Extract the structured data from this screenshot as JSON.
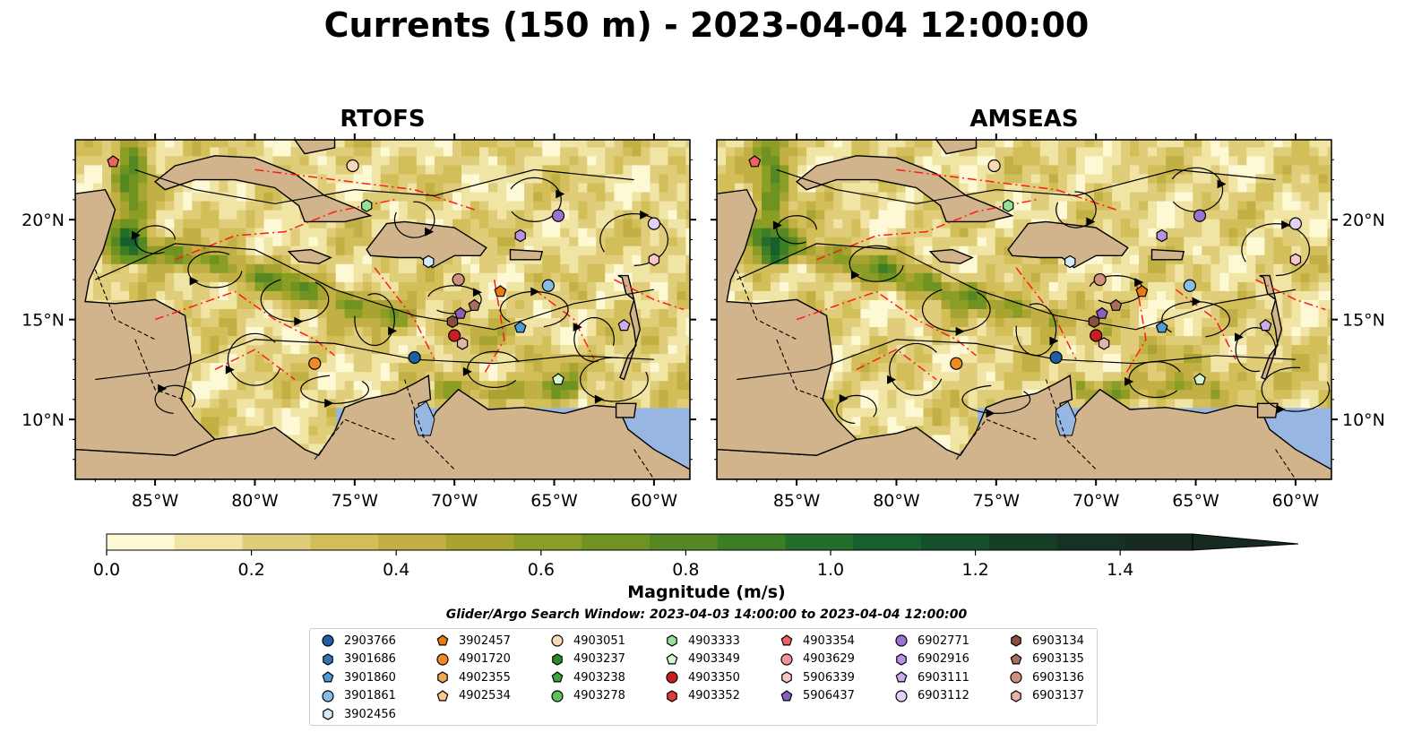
{
  "title": "Currents (150 m) - 2023-04-04 12:00:00",
  "panels": [
    {
      "title": "RTOFS"
    },
    {
      "title": "AMSEAS"
    }
  ],
  "chart_data": {
    "type": "heatmap",
    "title": "Currents (150 m) - 2023-04-04 12:00:00",
    "x_ticks": [
      "85°W",
      "80°W",
      "75°W",
      "70°W",
      "65°W",
      "60°W"
    ],
    "x_tick_values": [
      -85,
      -80,
      -75,
      -70,
      -65,
      -60
    ],
    "y_ticks": [
      "20°N",
      "15°N",
      "10°N"
    ],
    "y_tick_values": [
      20,
      15,
      10
    ],
    "xlim": [
      -89,
      -58.2
    ],
    "ylim": [
      7,
      24
    ],
    "colorbar": {
      "label": "Magnitude (m/s)",
      "ticks": [
        "0.0",
        "0.2",
        "0.4",
        "0.6",
        "0.8",
        "1.0",
        "1.2",
        "1.4"
      ],
      "tick_values": [
        0,
        0.2,
        0.4,
        0.6,
        0.8,
        1.0,
        1.2,
        1.4
      ],
      "range": [
        0,
        1.5
      ],
      "extend": "max",
      "colors": [
        "#fef9d5",
        "#f1e5a6",
        "#e0cd7a",
        "#d2bf5a",
        "#c2b044",
        "#a8a432",
        "#8a9d24",
        "#6f9221",
        "#558823",
        "#3d7d26",
        "#246e2c",
        "#17602e",
        "#154f2b",
        "#163f27",
        "#173224",
        "#172a20"
      ]
    },
    "legend_title": "Glider/Argo Search Window: 2023-04-03 14:00:00 to 2023-04-04 12:00:00",
    "floats": [
      {
        "id": "2903766",
        "marker": "circle",
        "color": "#1f5fa6",
        "lon": -72.0,
        "lat": 13.1
      },
      {
        "id": "3901686",
        "marker": "hexagon",
        "color": "#3a73b0",
        "lon": null,
        "lat": null
      },
      {
        "id": "3901860",
        "marker": "pentagon",
        "color": "#4e9bd6",
        "lon": -66.7,
        "lat": 14.6
      },
      {
        "id": "3901861",
        "marker": "circle",
        "color": "#86bce6",
        "lon": -65.3,
        "lat": 16.7
      },
      {
        "id": "3902456",
        "marker": "hexagon",
        "color": "#d2ebfa",
        "lon": -71.3,
        "lat": 17.9
      },
      {
        "id": "3902457",
        "marker": "pentagon",
        "color": "#e87a10",
        "lon": -67.7,
        "lat": 16.4
      },
      {
        "id": "4901720",
        "marker": "circle",
        "color": "#f08a24",
        "lon": -77.0,
        "lat": 12.8
      },
      {
        "id": "4902355",
        "marker": "hexagon",
        "color": "#f5a552",
        "lon": null,
        "lat": null
      },
      {
        "id": "4902534",
        "marker": "pentagon",
        "color": "#f9c98a",
        "lon": null,
        "lat": null
      },
      {
        "id": "4903051",
        "marker": "circle",
        "color": "#fbd9b8",
        "lon": -75.1,
        "lat": 22.7
      },
      {
        "id": "4903237",
        "marker": "hexagon",
        "color": "#2c8a2c",
        "lon": null,
        "lat": null
      },
      {
        "id": "4903238",
        "marker": "pentagon",
        "color": "#3fa33f",
        "lon": null,
        "lat": null
      },
      {
        "id": "4903278",
        "marker": "circle",
        "color": "#5cc25c",
        "lon": null,
        "lat": null
      },
      {
        "id": "4903333",
        "marker": "hexagon",
        "color": "#98e098",
        "lon": -74.4,
        "lat": 20.7
      },
      {
        "id": "4903349",
        "marker": "pentagon",
        "color": "#d5f5d0",
        "lon": -64.8,
        "lat": 12.0
      },
      {
        "id": "4903350",
        "marker": "circle",
        "color": "#c81e1e",
        "lon": -70.0,
        "lat": 14.2
      },
      {
        "id": "4903352",
        "marker": "hexagon",
        "color": "#e03c3c",
        "lon": null,
        "lat": null
      },
      {
        "id": "4903354",
        "marker": "pentagon",
        "color": "#f06262",
        "lon": -87.1,
        "lat": 22.9
      },
      {
        "id": "4903629",
        "marker": "circle",
        "color": "#f09494",
        "lon": null,
        "lat": null
      },
      {
        "id": "5906339",
        "marker": "hexagon",
        "color": "#f8c8c8",
        "lon": -60.0,
        "lat": 18.0
      },
      {
        "id": "5906437",
        "marker": "pentagon",
        "color": "#8a5ebf",
        "lon": -69.7,
        "lat": 15.3
      },
      {
        "id": "6902771",
        "marker": "circle",
        "color": "#9c72d0",
        "lon": -64.8,
        "lat": 20.2
      },
      {
        "id": "6902916",
        "marker": "hexagon",
        "color": "#b693e0",
        "lon": -66.7,
        "lat": 19.2
      },
      {
        "id": "6903111",
        "marker": "pentagon",
        "color": "#c9aeea",
        "lon": -61.5,
        "lat": 14.7
      },
      {
        "id": "6903112",
        "marker": "circle",
        "color": "#e2d0f5",
        "lon": -60.0,
        "lat": 19.8
      },
      {
        "id": "6903134",
        "marker": "hexagon",
        "color": "#8a4e3e",
        "lon": -70.1,
        "lat": 14.9
      },
      {
        "id": "6903135",
        "marker": "pentagon",
        "color": "#a86e5e",
        "lon": -69.0,
        "lat": 15.7
      },
      {
        "id": "6903136",
        "marker": "circle",
        "color": "#d0907e",
        "lon": -69.8,
        "lat": 17.0
      },
      {
        "id": "6903137",
        "marker": "hexagon",
        "color": "#e6b4a6",
        "lon": -69.6,
        "lat": 13.8
      }
    ]
  }
}
